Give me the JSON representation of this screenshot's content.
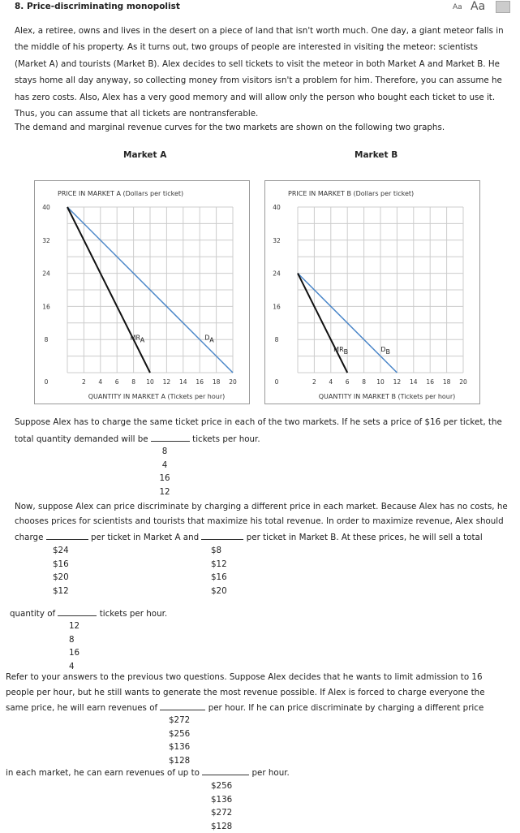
{
  "header": {
    "title": "8. Price-discriminating monopolist",
    "font_small": "Aa",
    "font_large": "Aa",
    "print_icon": "print-icon"
  },
  "intro": "Alex, a retiree, owns and lives in the desert on a piece of land that isn't worth much. One day, a giant meteor falls in the middle of his property. As it turns out, two groups of people are interested in visiting the meteor: scientists (Market A) and tourists (Market B). Alex decides to sell tickets to visit the meteor in both Market A and Market B. He stays home all day anyway, so collecting money from visitors isn't a problem for him. Therefore, you can assume he has zero costs. Also, Alex has a very good memory and will allow only the person who bought each ticket to use it. Thus, you can assume that all tickets are nontransferable.",
  "curves_intro": "The demand and marginal revenue curves for the two markets are shown on the following two graphs.",
  "chart_data": [
    {
      "type": "line",
      "title": "Market A",
      "ylabel": "PRICE IN MARKET A (Dollars per ticket)",
      "xlabel": "QUANTITY IN MARKET A (Tickets per hour)",
      "xlim": [
        0,
        20
      ],
      "ylim": [
        0,
        40
      ],
      "xticks": [
        "0",
        "2",
        "4",
        "6",
        "8",
        "10",
        "12",
        "14",
        "16",
        "18",
        "20"
      ],
      "yticks": [
        "40",
        "32",
        "24",
        "16",
        "8"
      ],
      "series": [
        {
          "name": "D",
          "sub": "A",
          "color": "#4a86c8",
          "points": [
            [
              0,
              40
            ],
            [
              20,
              0
            ]
          ]
        },
        {
          "name": "MR",
          "sub": "A",
          "color": "#111111",
          "points": [
            [
              0,
              40
            ],
            [
              10,
              0
            ]
          ]
        }
      ]
    },
    {
      "type": "line",
      "title": "Market B",
      "ylabel": "PRICE IN MARKET B (Dollars per ticket)",
      "xlabel": "QUANTITY IN MARKET B (Tickets per hour)",
      "xlim": [
        0,
        20
      ],
      "ylim": [
        0,
        40
      ],
      "xticks": [
        "0",
        "2",
        "4",
        "6",
        "8",
        "10",
        "12",
        "14",
        "16",
        "18",
        "20"
      ],
      "yticks": [
        "40",
        "32",
        "24",
        "16",
        "8"
      ],
      "series": [
        {
          "name": "D",
          "sub": "B",
          "color": "#4a86c8",
          "points": [
            [
              0,
              24
            ],
            [
              12,
              0
            ]
          ]
        },
        {
          "name": "MR",
          "sub": "B",
          "color": "#111111",
          "points": [
            [
              0,
              24
            ],
            [
              6,
              0
            ]
          ]
        }
      ]
    }
  ],
  "q1": {
    "line1": "Suppose Alex has to charge the same ticket price in each of the two markets. If he sets a price of $16 per ticket, the",
    "pre": "total quantity demanded will be",
    "post": "tickets per hour.",
    "options": [
      "8",
      "4",
      "16",
      "12"
    ]
  },
  "q2": {
    "line1": "Now, suppose Alex can price discriminate by charging a different price in each market. Because Alex has no costs, he",
    "line2": "chooses prices for scientists and tourists that maximize his total revenue. In order to maximize revenue, Alex should",
    "pre": "charge",
    "mid": "per ticket in Market A and",
    "post": "per ticket in Market B. At these prices, he will sell a total",
    "options_a": [
      "$24",
      "$16",
      "$20",
      "$12"
    ],
    "options_b": [
      "$8",
      "$12",
      "$16",
      "$20"
    ],
    "qty_pre": "quantity of",
    "qty_post": "tickets per hour.",
    "options_qty": [
      "12",
      "8",
      "16",
      "4"
    ]
  },
  "q3": {
    "line1": "Refer to your answers to the previous two questions. Suppose Alex decides that he wants to limit admission to 16",
    "line2": "people per hour, but he still wants to generate the most revenue possible. If Alex is forced to charge everyone the",
    "pre": "same price, he will earn revenues of",
    "post": "per hour. If he can price discriminate by charging a different price",
    "options_same": [
      "$272",
      "$256",
      "$136",
      "$128"
    ],
    "pre2": "in each market, he can earn revenues of up to",
    "post2": "per hour.",
    "options_disc": [
      "$256",
      "$136",
      "$272",
      "$128"
    ]
  }
}
